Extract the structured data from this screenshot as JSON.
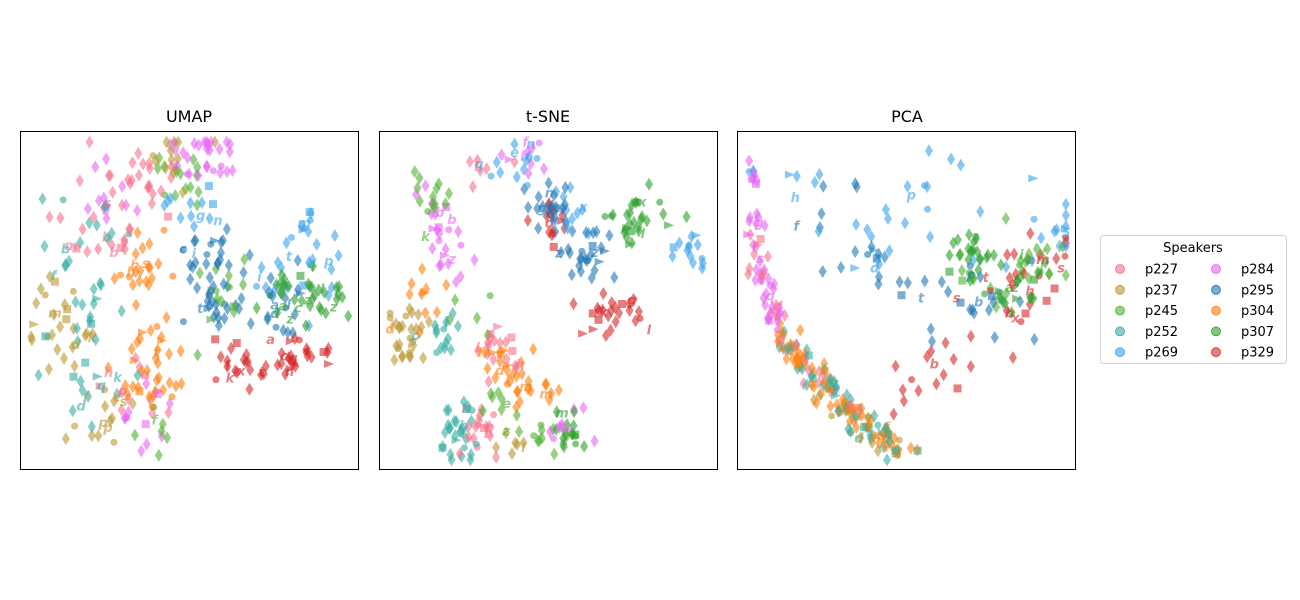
{
  "chart_data": [
    {
      "type": "scatter",
      "title": "UMAP",
      "xlabel": "",
      "ylabel": "",
      "axis_ticks": false,
      "clusters": [
        {
          "speaker": "p227",
          "centers": [
            [
              0.25,
              0.7
            ],
            [
              0.3,
              0.83
            ],
            [
              0.4,
              0.85
            ],
            [
              0.35,
              0.25
            ]
          ],
          "spread": 0.06,
          "n": 55
        },
        {
          "speaker": "p237",
          "centers": [
            [
              0.1,
              0.5
            ],
            [
              0.12,
              0.38
            ],
            [
              0.45,
              0.95
            ],
            [
              0.25,
              0.15
            ]
          ],
          "spread": 0.05,
          "n": 55
        },
        {
          "speaker": "p245",
          "centers": [
            [
              0.4,
              0.1
            ],
            [
              0.6,
              0.55
            ],
            [
              0.45,
              0.88
            ]
          ],
          "spread": 0.05,
          "n": 35
        },
        {
          "speaker": "p252",
          "centers": [
            [
              0.18,
              0.7
            ],
            [
              0.22,
              0.45
            ],
            [
              0.2,
              0.22
            ]
          ],
          "spread": 0.06,
          "n": 45
        },
        {
          "speaker": "p269",
          "centers": [
            [
              0.85,
              0.68
            ],
            [
              0.55,
              0.78
            ],
            [
              0.8,
              0.55
            ]
          ],
          "spread": 0.05,
          "n": 45
        },
        {
          "speaker": "p284",
          "centers": [
            [
              0.25,
              0.8
            ],
            [
              0.35,
              0.15
            ],
            [
              0.5,
              0.9
            ],
            [
              0.55,
              0.95
            ]
          ],
          "spread": 0.05,
          "n": 50
        },
        {
          "speaker": "p295",
          "centers": [
            [
              0.6,
              0.5
            ],
            [
              0.75,
              0.48
            ],
            [
              0.55,
              0.62
            ]
          ],
          "spread": 0.05,
          "n": 65
        },
        {
          "speaker": "p304",
          "centers": [
            [
              0.35,
              0.6
            ],
            [
              0.38,
              0.4
            ],
            [
              0.4,
              0.25
            ]
          ],
          "spread": 0.05,
          "n": 60
        },
        {
          "speaker": "p307",
          "centers": [
            [
              0.9,
              0.5
            ],
            [
              0.78,
              0.52
            ]
          ],
          "spread": 0.04,
          "n": 40
        },
        {
          "speaker": "p329",
          "centers": [
            [
              0.78,
              0.33
            ],
            [
              0.65,
              0.32
            ],
            [
              0.85,
              0.34
            ]
          ],
          "spread": 0.04,
          "n": 50
        }
      ]
    },
    {
      "type": "scatter",
      "title": "t-SNE",
      "xlabel": "",
      "ylabel": "",
      "axis_ticks": false,
      "clusters": [
        {
          "speaker": "p227",
          "centers": [
            [
              0.3,
              0.9
            ],
            [
              0.3,
              0.12
            ],
            [
              0.35,
              0.35
            ]
          ],
          "spread": 0.04,
          "n": 45
        },
        {
          "speaker": "p237",
          "centers": [
            [
              0.07,
              0.35
            ],
            [
              0.08,
              0.43
            ],
            [
              0.4,
              0.07
            ]
          ],
          "spread": 0.03,
          "n": 35
        },
        {
          "speaker": "p245",
          "centers": [
            [
              0.25,
              0.45
            ],
            [
              0.5,
              0.12
            ],
            [
              0.35,
              0.2
            ],
            [
              0.15,
              0.8
            ]
          ],
          "spread": 0.04,
          "n": 40
        },
        {
          "speaker": "p252",
          "centers": [
            [
              0.25,
              0.08
            ],
            [
              0.25,
              0.15
            ],
            [
              0.2,
              0.4
            ]
          ],
          "spread": 0.04,
          "n": 45
        },
        {
          "speaker": "p269",
          "centers": [
            [
              0.55,
              0.77
            ],
            [
              0.9,
              0.65
            ],
            [
              0.4,
              0.91
            ]
          ],
          "spread": 0.04,
          "n": 40
        },
        {
          "speaker": "p284",
          "centers": [
            [
              0.18,
              0.75
            ],
            [
              0.45,
              0.93
            ],
            [
              0.55,
              0.14
            ],
            [
              0.2,
              0.6
            ]
          ],
          "spread": 0.04,
          "n": 45
        },
        {
          "speaker": "p295",
          "centers": [
            [
              0.6,
              0.66
            ],
            [
              0.5,
              0.78
            ]
          ],
          "spread": 0.04,
          "n": 50
        },
        {
          "speaker": "p304",
          "centers": [
            [
              0.35,
              0.3
            ],
            [
              0.45,
              0.25
            ],
            [
              0.15,
              0.5
            ]
          ],
          "spread": 0.04,
          "n": 45
        },
        {
          "speaker": "p307",
          "centers": [
            [
              0.75,
              0.73
            ],
            [
              0.8,
              0.78
            ],
            [
              0.55,
              0.1
            ]
          ],
          "spread": 0.04,
          "n": 45
        },
        {
          "speaker": "p329",
          "centers": [
            [
              0.72,
              0.48
            ],
            [
              0.65,
              0.45
            ],
            [
              0.5,
              0.73
            ]
          ],
          "spread": 0.03,
          "n": 40
        }
      ]
    },
    {
      "type": "scatter",
      "title": "PCA",
      "xlabel": "",
      "ylabel": "",
      "axis_ticks": false,
      "clusters": [
        {
          "speaker": "p227",
          "arc": [
            0.05,
            0.8
          ],
          "spread": 0.02,
          "n": 30
        },
        {
          "speaker": "p237",
          "arc": [
            0.6,
            1.0
          ],
          "spread": 0.02,
          "n": 25
        },
        {
          "speaker": "p245",
          "centers": [
            [
              0.7,
              0.55
            ],
            [
              0.85,
              0.62
            ]
          ],
          "spread": 0.05,
          "n": 25
        },
        {
          "speaker": "p252",
          "arc": [
            0.4,
            1.0
          ],
          "spread": 0.02,
          "n": 50
        },
        {
          "speaker": "p269",
          "centers": [
            [
              0.2,
              0.85
            ],
            [
              0.6,
              0.8
            ],
            [
              0.9,
              0.7
            ],
            [
              0.4,
              0.7
            ]
          ],
          "spread": 0.09,
          "n": 45
        },
        {
          "speaker": "p284",
          "arc": [
            0.0,
            0.35
          ],
          "spread": 0.015,
          "n": 45
        },
        {
          "speaker": "p295",
          "centers": [
            [
              0.5,
              0.55
            ],
            [
              0.7,
              0.5
            ],
            [
              0.3,
              0.75
            ]
          ],
          "spread": 0.08,
          "n": 40
        },
        {
          "speaker": "p304",
          "arc": [
            0.35,
            0.95
          ],
          "spread": 0.02,
          "n": 70
        },
        {
          "speaker": "p307",
          "centers": [
            [
              0.85,
              0.58
            ],
            [
              0.8,
              0.52
            ],
            [
              0.7,
              0.65
            ]
          ],
          "spread": 0.04,
          "n": 45
        },
        {
          "speaker": "p329",
          "centers": [
            [
              0.9,
              0.62
            ],
            [
              0.7,
              0.4
            ],
            [
              0.55,
              0.3
            ],
            [
              0.85,
              0.5
            ]
          ],
          "spread": 0.06,
          "n": 45
        }
      ]
    }
  ],
  "legend": {
    "title": "Speakers",
    "entries": [
      {
        "label": "p227",
        "color": "#f77189"
      },
      {
        "label": "p237",
        "color": "#bb9832"
      },
      {
        "label": "p245",
        "color": "#50b131"
      },
      {
        "label": "p252",
        "color": "#36ada4"
      },
      {
        "label": "p269",
        "color": "#3ba3ec"
      },
      {
        "label": "p284",
        "color": "#e866f4"
      },
      {
        "label": "p295",
        "color": "#1f77b4"
      },
      {
        "label": "p304",
        "color": "#ff7f0e"
      },
      {
        "label": "p307",
        "color": "#2ca02c"
      },
      {
        "label": "p329",
        "color": "#d62728"
      }
    ]
  },
  "marker_shapes": [
    "diamond",
    "circle",
    "square",
    "triangle",
    "letter"
  ],
  "letter_glyphs": [
    "a",
    "b",
    "c",
    "d",
    "e",
    "f",
    "g",
    "h",
    "i",
    "k",
    "l",
    "m",
    "n",
    "p",
    "q",
    "s",
    "t",
    "x",
    "z"
  ]
}
